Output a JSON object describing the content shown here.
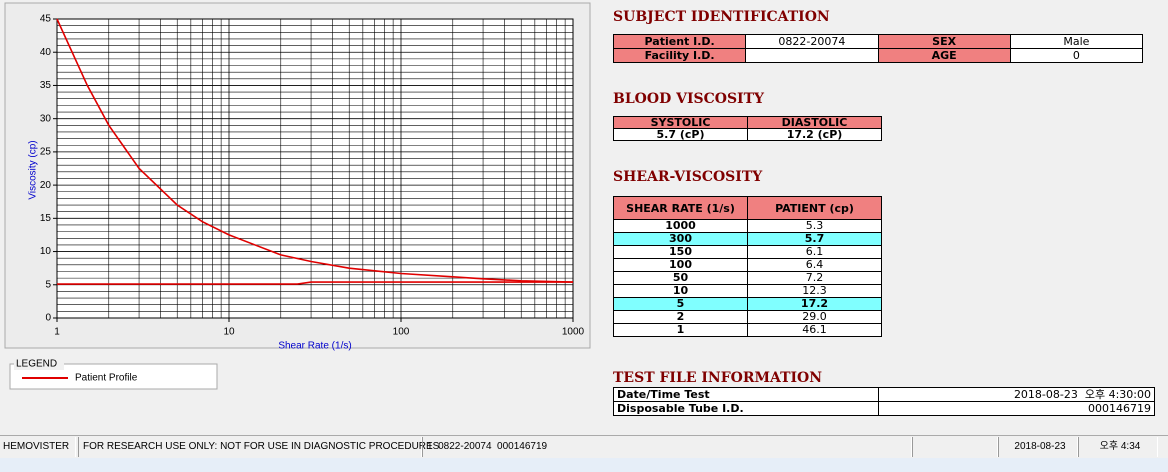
{
  "chart_data": {
    "type": "line",
    "xlabel": "Shear Rate (1/s)",
    "ylabel": "Viscosity (cp)",
    "log_x": true,
    "grid": true,
    "minor_grid": true,
    "xlim": [
      1,
      1000
    ],
    "ylim": [
      0,
      45
    ],
    "xticks": [
      1,
      10,
      100,
      1000
    ],
    "yticks": [
      0,
      5,
      10,
      15,
      20,
      25,
      30,
      35,
      40,
      45
    ],
    "legend_title": "LEGEND",
    "series": [
      {
        "name": "Patient Profile",
        "color": "#e00000",
        "x": [
          1,
          1.5,
          2,
          3,
          5,
          7,
          10,
          20,
          30,
          50,
          100,
          200,
          300,
          500,
          1000
        ],
        "values": [
          45,
          35,
          29,
          22.5,
          17,
          14.5,
          12.5,
          9.5,
          8.5,
          7.5,
          6.7,
          6.2,
          5.9,
          5.6,
          5.4
        ]
      },
      {
        "color": "#e00000",
        "x": [
          1,
          25,
          30,
          1000
        ],
        "values": [
          5.1,
          5.1,
          5.4,
          5.4
        ]
      }
    ]
  },
  "subject": {
    "title": "SUBJECT IDENTIFICATION",
    "patient_id_label": "Patient I.D.",
    "patient_id": "0822-20074",
    "sex_label": "SEX",
    "sex": "Male",
    "facility_id_label": "Facility I.D.",
    "age_label": "AGE",
    "age": "0"
  },
  "blood": {
    "title": "BLOOD VISCOSITY",
    "headers": [
      "SYSTOLIC",
      "DIASTOLIC"
    ],
    "values": [
      "5.7 (cP)",
      "17.2 (cP)"
    ]
  },
  "shear": {
    "title": "SHEAR-VISCOSITY",
    "headers": [
      "SHEAR RATE (1/s)",
      "PATIENT (cp)"
    ],
    "highlighted_rows": [
      1,
      6
    ],
    "rows": [
      [
        "1000",
        "5.3"
      ],
      [
        "300",
        "5.7"
      ],
      [
        "150",
        "6.1"
      ],
      [
        "100",
        "6.4"
      ],
      [
        "50",
        "7.2"
      ],
      [
        "10",
        "12.3"
      ],
      [
        "5",
        "17.2"
      ],
      [
        "2",
        "29.0"
      ],
      [
        "1",
        "46.1"
      ]
    ]
  },
  "test": {
    "title": "TEST FILE INFORMATION",
    "rows": [
      [
        "Date/Time Test",
        "2018-08-23  오후 4:30:00"
      ],
      [
        "Disposable Tube I.D.",
        "000146719"
      ]
    ]
  },
  "status": [
    "HEMOVISTER",
    "FOR RESEARCH USE ONLY: NOT FOR USE IN DIAGNOSTIC PROCEDURES",
    "1  0822-20074  000146719",
    "2018-08-23",
    "오후 4:34"
  ]
}
